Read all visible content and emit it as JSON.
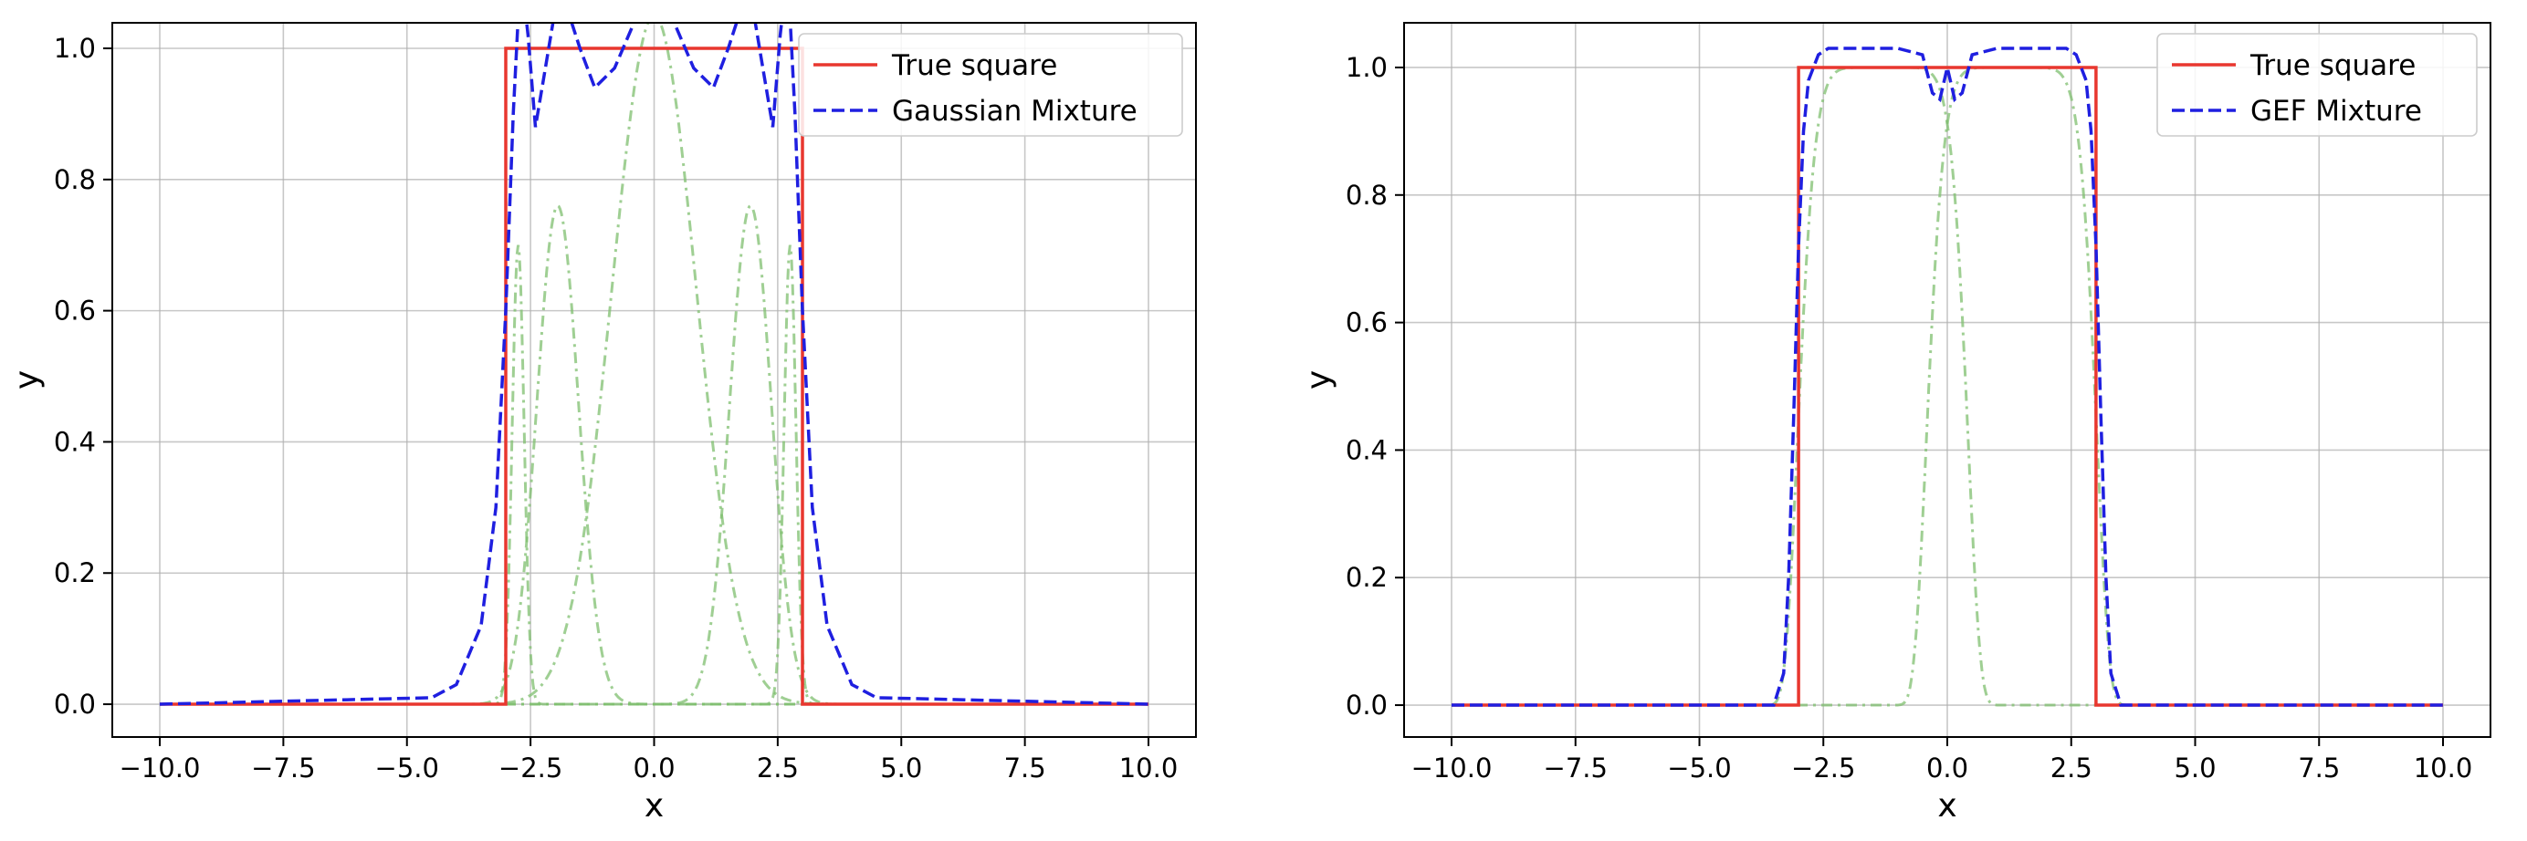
{
  "chart_data": [
    {
      "type": "line",
      "xlabel": "x",
      "ylabel": "y",
      "xlim": [
        -10,
        10
      ],
      "ylim": [
        -0.05,
        1.0
      ],
      "xticks": [
        "−10.0",
        "−7.5",
        "−5.0",
        "−2.5",
        "0.0",
        "2.5",
        "5.0",
        "7.5",
        "10.0"
      ],
      "yticks": [
        "0.0",
        "0.2",
        "0.4",
        "0.6",
        "0.8",
        "1.0"
      ],
      "grid": true,
      "legend_position": "top-right",
      "series": [
        {
          "name": "True square",
          "color": "#e8372f",
          "style": "solid",
          "x": [
            -10,
            -3,
            -3,
            3,
            3,
            10
          ],
          "y": [
            0,
            0,
            1,
            1,
            0,
            0
          ]
        },
        {
          "name": "Gaussian Mixture",
          "color": "#1f1fe0",
          "style": "dashed",
          "x": [
            -10,
            -4.5,
            -4,
            -3.5,
            -3.2,
            -3.0,
            -2.85,
            -2.7,
            -2.55,
            -2.4,
            -2.2,
            -2.0,
            -1.8,
            -1.5,
            -1.2,
            -0.8,
            -0.4,
            0,
            0.4,
            0.8,
            1.2,
            1.5,
            1.8,
            2.0,
            2.2,
            2.4,
            2.55,
            2.7,
            2.85,
            3.0,
            3.2,
            3.5,
            4,
            4.5,
            10
          ],
          "y": [
            0,
            0.01,
            0.03,
            0.12,
            0.3,
            0.6,
            0.9,
            1.12,
            1.02,
            0.88,
            0.97,
            1.06,
            1.07,
            1.0,
            0.94,
            0.97,
            1.04,
            1.06,
            1.04,
            0.97,
            0.94,
            1.0,
            1.07,
            1.06,
            0.97,
            0.88,
            1.02,
            1.12,
            0.9,
            0.6,
            0.3,
            0.12,
            0.03,
            0.01,
            0
          ]
        },
        {
          "name": "",
          "color": "#7fbf6f",
          "style": "dashdot",
          "components": [
            {
              "mu": -2.75,
              "sigma": 0.12,
              "amp": 0.7
            },
            {
              "mu": -1.95,
              "sigma": 0.42,
              "amp": 0.76
            },
            {
              "mu": 0.0,
              "sigma": 0.85,
              "amp": 1.05
            },
            {
              "mu": 1.95,
              "sigma": 0.42,
              "amp": 0.76
            },
            {
              "mu": 2.75,
              "sigma": 0.12,
              "amp": 0.7
            }
          ]
        }
      ]
    },
    {
      "type": "line",
      "xlabel": "x",
      "ylabel": "y",
      "xlim": [
        -10,
        10
      ],
      "ylim": [
        -0.05,
        1.03
      ],
      "xticks": [
        "−10.0",
        "−7.5",
        "−5.0",
        "−2.5",
        "0.0",
        "2.5",
        "5.0",
        "7.5",
        "10.0"
      ],
      "yticks": [
        "0.0",
        "0.2",
        "0.4",
        "0.6",
        "0.8",
        "1.0"
      ],
      "grid": true,
      "legend_position": "top-right",
      "series": [
        {
          "name": "True square",
          "color": "#e8372f",
          "style": "solid",
          "x": [
            -10,
            -3,
            -3,
            3,
            3,
            10
          ],
          "y": [
            0,
            0,
            1,
            1,
            0,
            0
          ]
        },
        {
          "name": "GEF Mixture",
          "color": "#1f1fe0",
          "style": "dashed",
          "x": [
            -10,
            -3.5,
            -3.3,
            -3.2,
            -3.1,
            -3.0,
            -2.9,
            -2.8,
            -2.6,
            -2.4,
            -2.0,
            -1.0,
            -0.5,
            -0.3,
            -0.15,
            0,
            0.15,
            0.3,
            0.5,
            1.0,
            2.0,
            2.4,
            2.6,
            2.8,
            2.9,
            3.0,
            3.1,
            3.2,
            3.3,
            3.5,
            10
          ],
          "y": [
            0,
            0,
            0.05,
            0.2,
            0.45,
            0.72,
            0.9,
            0.98,
            1.02,
            1.03,
            1.03,
            1.03,
            1.02,
            0.96,
            0.95,
            1.0,
            0.95,
            0.96,
            1.02,
            1.03,
            1.03,
            1.03,
            1.02,
            0.98,
            0.9,
            0.72,
            0.45,
            0.2,
            0.05,
            0,
            0
          ]
        },
        {
          "name": "",
          "color": "#7fbf6f",
          "style": "dashdot",
          "components": [
            {
              "center": -1.3,
              "half_width": 1.75,
              "amp": 1.0
            },
            {
              "center": 1.3,
              "half_width": 1.75,
              "amp": 1.0
            }
          ]
        }
      ]
    }
  ]
}
